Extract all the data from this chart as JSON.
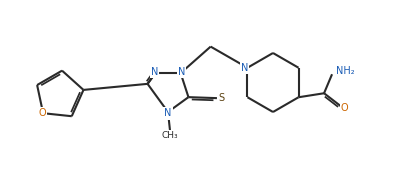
{
  "background_color": "#ffffff",
  "line_color": "#2a2a2a",
  "atom_colors": {
    "N": "#1a5cb5",
    "O": "#cc6600",
    "S": "#5a4010",
    "C": "#2a2a2a"
  },
  "bond_width": 1.5,
  "dbo": 0.022
}
